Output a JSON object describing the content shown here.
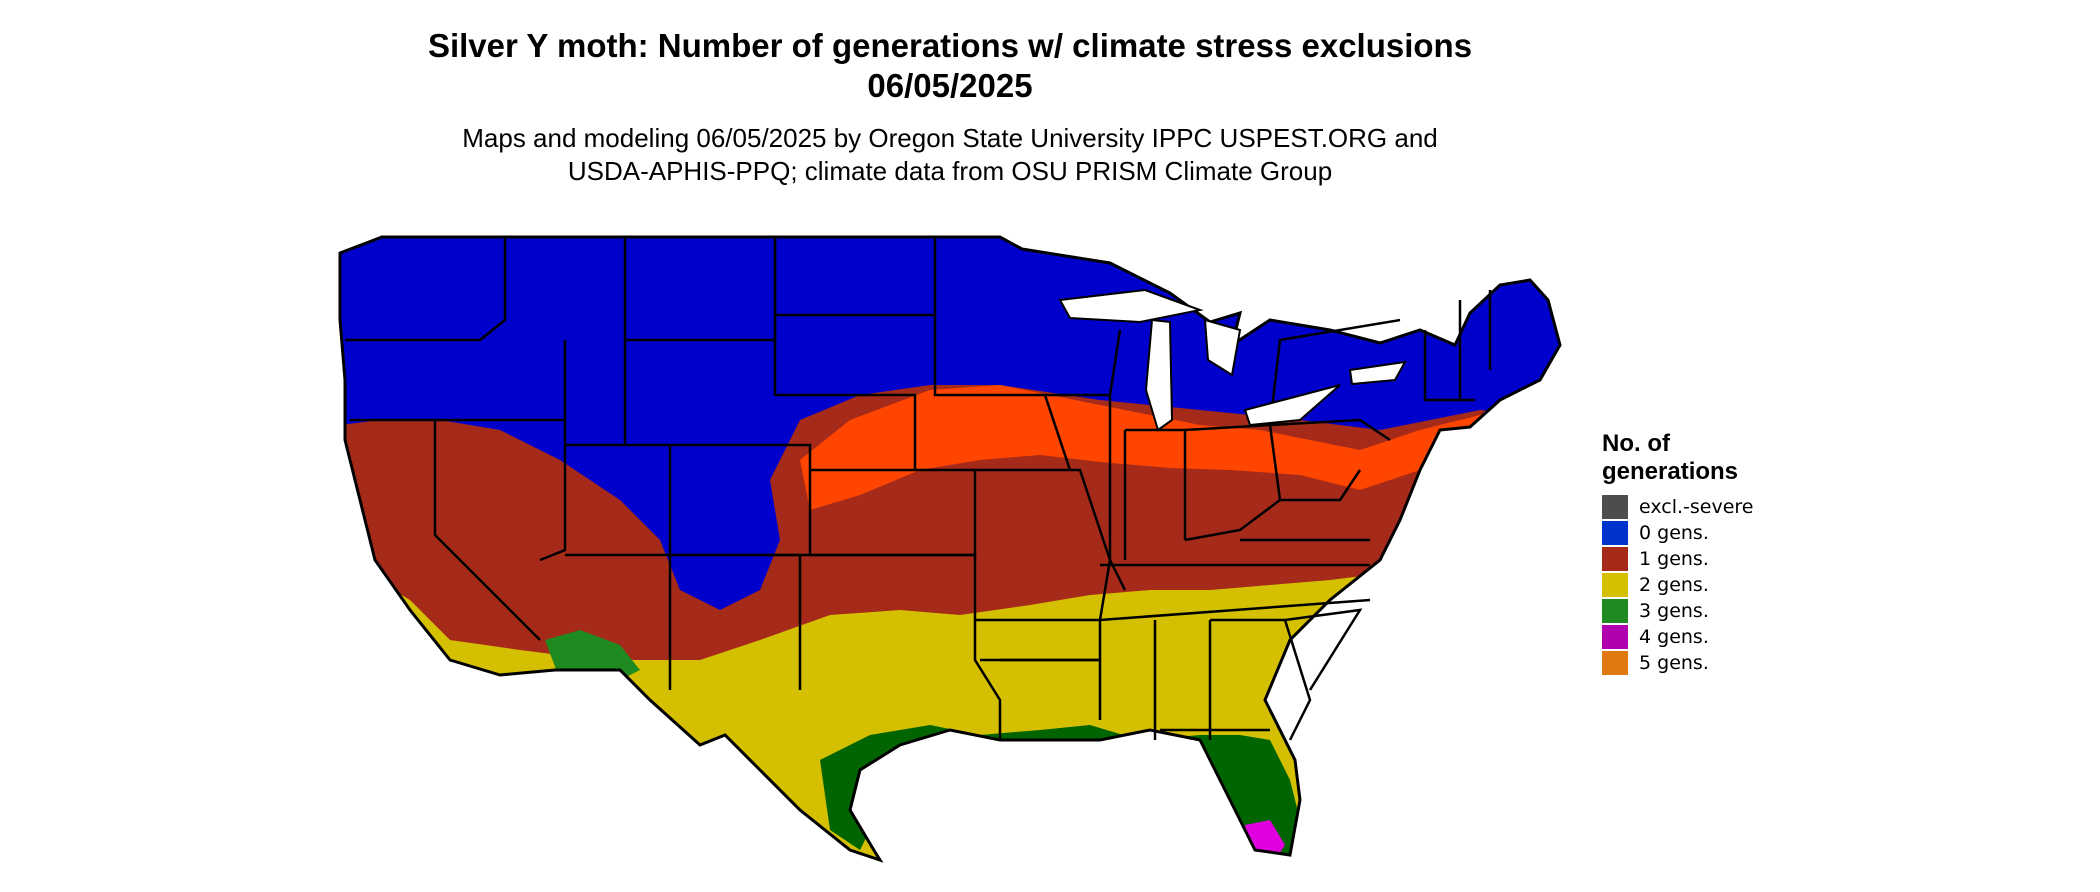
{
  "header": {
    "title_line1": "Silver Y moth: Number of generations w/ climate stress exclusions",
    "title_line2": "06/05/2025",
    "subtitle_line1": "Maps and modeling 06/05/2025 by Oregon State University IPPC USPEST.ORG and",
    "subtitle_line2": "USDA-APHIS-PPQ; climate data from OSU PRISM Climate Group"
  },
  "legend": {
    "title_line1": "No. of",
    "title_line2": "generations",
    "items": [
      {
        "label": "excl.-severe",
        "color": "#4d4d4d"
      },
      {
        "label": "0 gens.",
        "color": "#0033cc"
      },
      {
        "label": "1 gens.",
        "color": "#a52a1a"
      },
      {
        "label": "2 gens.",
        "color": "#d4bf00"
      },
      {
        "label": "3 gens.",
        "color": "#1f8a1f"
      },
      {
        "label": "4 gens.",
        "color": "#b000b0"
      },
      {
        "label": "5 gens.",
        "color": "#e07a10"
      }
    ]
  }
}
